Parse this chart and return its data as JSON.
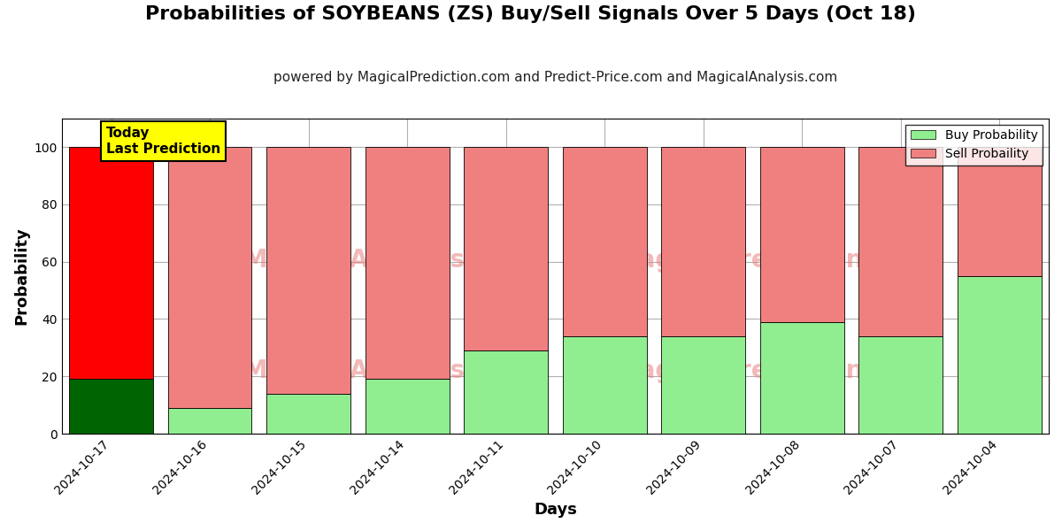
{
  "title": "Probabilities of SOYBEANS (ZS) Buy/Sell Signals Over 5 Days (Oct 18)",
  "subtitle": "powered by MagicalPrediction.com and Predict-Price.com and MagicalAnalysis.com",
  "xlabel": "Days",
  "ylabel": "Probability",
  "categories": [
    "2024-10-17",
    "2024-10-16",
    "2024-10-15",
    "2024-10-14",
    "2024-10-11",
    "2024-10-10",
    "2024-10-09",
    "2024-10-08",
    "2024-10-07",
    "2024-10-04"
  ],
  "buy_values": [
    19,
    9,
    14,
    19,
    29,
    34,
    34,
    39,
    34,
    55
  ],
  "sell_values": [
    81,
    91,
    86,
    81,
    71,
    66,
    66,
    61,
    66,
    45
  ],
  "first_bar_buy_color": "#006400",
  "first_bar_sell_color": "#ff0000",
  "other_bar_buy_color": "#90EE90",
  "other_bar_sell_color": "#F08080",
  "ylim": [
    0,
    110
  ],
  "yticks": [
    0,
    20,
    40,
    60,
    80,
    100
  ],
  "dashed_line_y": 110,
  "legend_buy_label": "Buy Probability",
  "legend_sell_label": "Sell Probaility",
  "legend_buy_color": "#90EE90",
  "legend_sell_color": "#F08080",
  "annotation_text": "Today\nLast Prediction",
  "annotation_bg": "#ffff00",
  "background_color": "#ffffff",
  "grid_color": "#b0b0b0",
  "title_fontsize": 16,
  "subtitle_fontsize": 11,
  "axis_label_fontsize": 13,
  "tick_fontsize": 10,
  "bar_width": 0.85
}
